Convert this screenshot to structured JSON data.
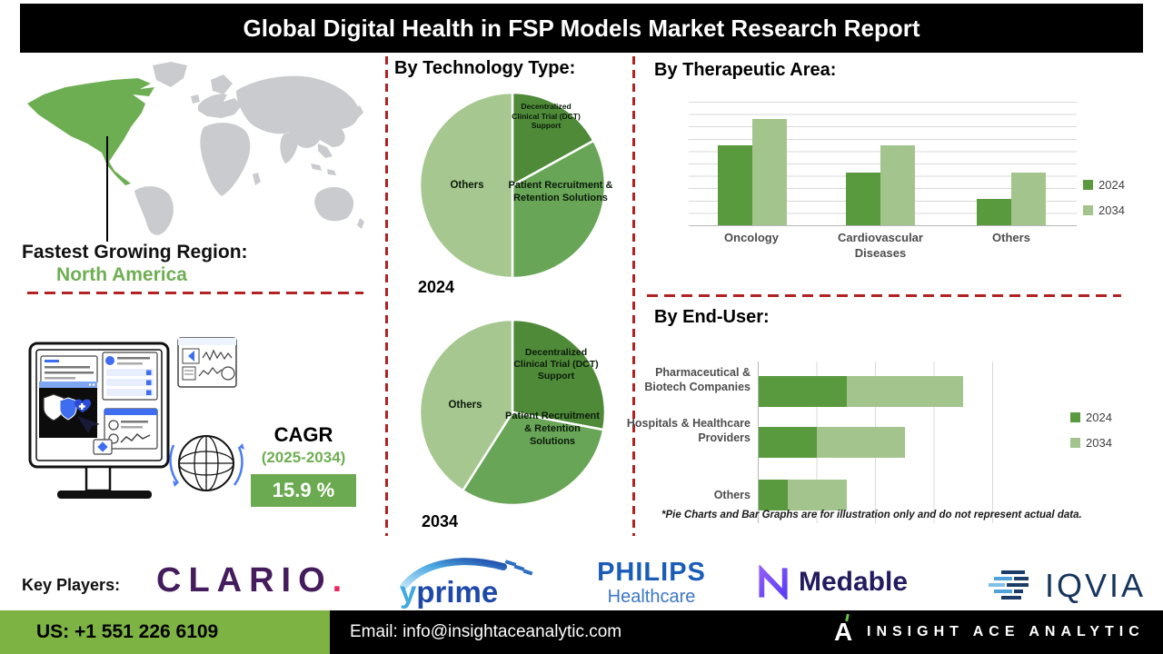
{
  "title": "Global Digital Health in FSP Models Market Research Report",
  "left": {
    "fastest_growing_label": "Fastest Growing Region:",
    "fastest_growing_region": "North America",
    "cagr_label": "CAGR",
    "cagr_period": "(2025-2034)",
    "cagr_value": "15.9 %"
  },
  "sections": {
    "technology_title": "By Technology Type:",
    "therapeutic_title": "By Therapeutic Area:",
    "end_user_title": "By End-User:"
  },
  "note": "*Pie Charts and Bar Graphs are for illustration only and do not represent actual data.",
  "key_players": {
    "label": "Key Players:",
    "clario": "CLARIO",
    "clario_dot": ".",
    "yprime_y": "y",
    "yprime_rest": "prime",
    "philips": "PHILIPS",
    "philips_sub": "Healthcare",
    "medable": "Medable",
    "iqvia": "IQVIA"
  },
  "footer": {
    "phone": "US: +1 551 226 6109",
    "email": "Email: info@insightaceanalytic.com",
    "brand": "INSIGHT ACE ANALYTIC",
    "brand_initial": "A"
  },
  "colors": {
    "pie_dark_green": "#4f8a38",
    "pie_mid_green": "#68a556",
    "pie_light_green": "#a6c78f",
    "bar_dark_green": "#5a9a3e",
    "bar_light_green": "#a3c48c",
    "dashed_separator_red": "#b22222",
    "footer_green": "#7cb342",
    "cagr_box_green": "#6baa50",
    "region_text_green": "#6fae53",
    "map_region_green": "#6dae53",
    "map_gray": "#c9cbce"
  },
  "chart_data": [
    {
      "type": "pie",
      "title": "By Technology Type: 2024",
      "year_label": "2024",
      "labels": [
        "Decentralized Clinical Trial (DCT) Support",
        "Patient Recruitment & Retention Solutions",
        "Others"
      ],
      "values_pct": [
        17,
        33,
        50
      ],
      "colors": [
        "#4f8a38",
        "#68a556",
        "#a6c78f"
      ],
      "units": "relative (illustration only)"
    },
    {
      "type": "pie",
      "title": "By Technology Type: 2034",
      "year_label": "2034",
      "labels": [
        "Decentralized Clinical Trial (DCT) Support",
        "Patient Recruitment & Retention Solutions",
        "Others"
      ],
      "values_pct": [
        28,
        31,
        41
      ],
      "colors": [
        "#4f8a38",
        "#68a556",
        "#a6c78f"
      ],
      "units": "relative (illustration only)"
    },
    {
      "type": "bar",
      "title": "By Therapeutic Area:",
      "categories": [
        "Oncology",
        "Cardiovascular Diseases",
        "Others"
      ],
      "series": [
        {
          "name": "2024",
          "color": "#5a9a3e",
          "values": [
            3,
            2,
            1
          ]
        },
        {
          "name": "2034",
          "color": "#a3c48c",
          "values": [
            4,
            3,
            2
          ]
        }
      ],
      "xlabel": "",
      "ylabel": "",
      "ylim": [
        0,
        4.65
      ],
      "grid": true,
      "legend_position": "right",
      "units": "relative (illustration only)"
    },
    {
      "type": "bar-horizontal-stacked",
      "title": "By End-User:",
      "categories": [
        "Pharmaceutical & Biotech Companies",
        "Hospitals & Healthcare Providers",
        "Others"
      ],
      "series": [
        {
          "name": "2024",
          "color": "#5a9a3e",
          "values": [
            1.5,
            1.0,
            0.5
          ]
        },
        {
          "name": "2034",
          "color": "#a3c48c",
          "values": [
            2.0,
            1.5,
            1.0
          ]
        }
      ],
      "xlim": [
        0,
        4.3
      ],
      "grid": true,
      "legend_position": "right",
      "units": "relative (illustration only)"
    }
  ]
}
